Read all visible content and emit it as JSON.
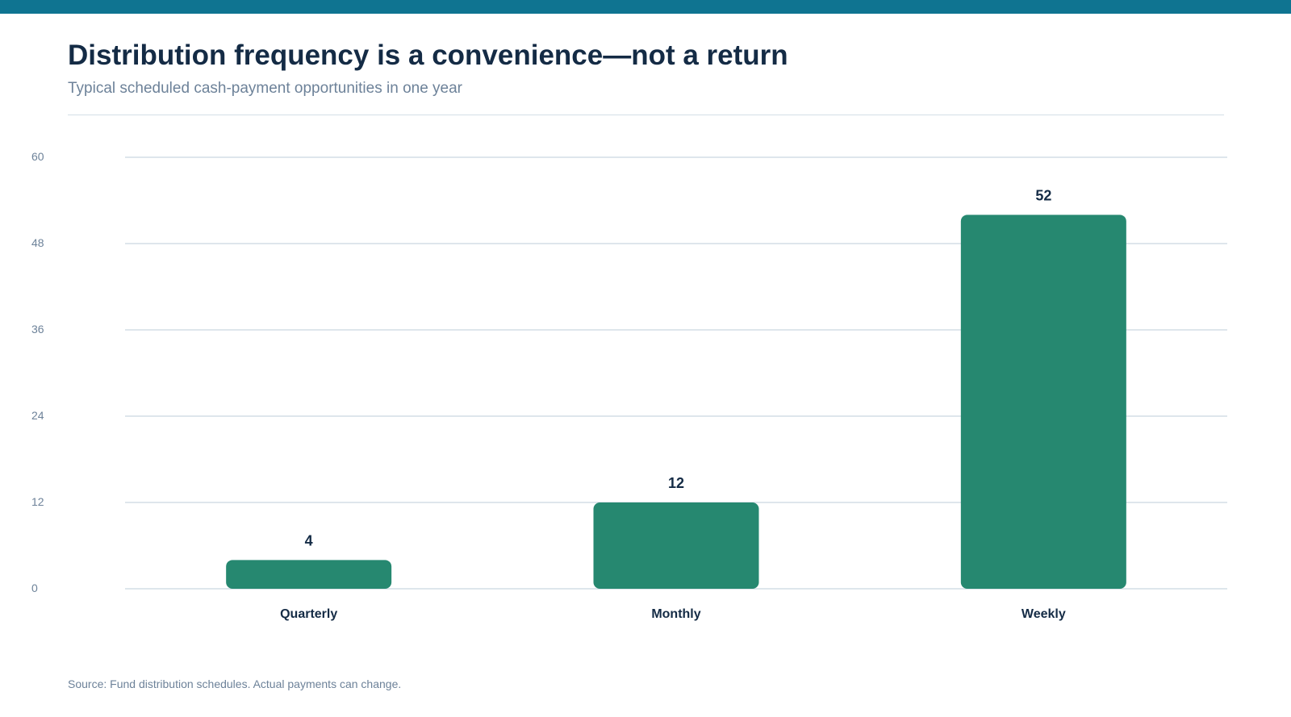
{
  "header": {
    "title": "Distribution frequency is a convenience—not a return",
    "subtitle": "Typical scheduled cash-payment opportunities in one year"
  },
  "footer": {
    "source": "Source: Fund distribution schedules. Actual payments can change."
  },
  "colors": {
    "accent_bar": "#0f7491",
    "bar": "#268870",
    "title": "#142b45",
    "muted_text": "#6d8299",
    "grid": "#d4dee6"
  },
  "chart_data": {
    "type": "bar",
    "title": "Distribution frequency is a convenience—not a return",
    "subtitle": "Typical scheduled cash-payment opportunities in one year",
    "categories": [
      "Quarterly",
      "Monthly",
      "Weekly"
    ],
    "values": [
      4,
      12,
      52
    ],
    "data_labels": [
      "4",
      "12",
      "52"
    ],
    "ylim": [
      0,
      60
    ],
    "yticks": [
      0,
      12,
      24,
      36,
      48,
      60
    ],
    "grid": true,
    "legend": "none"
  }
}
